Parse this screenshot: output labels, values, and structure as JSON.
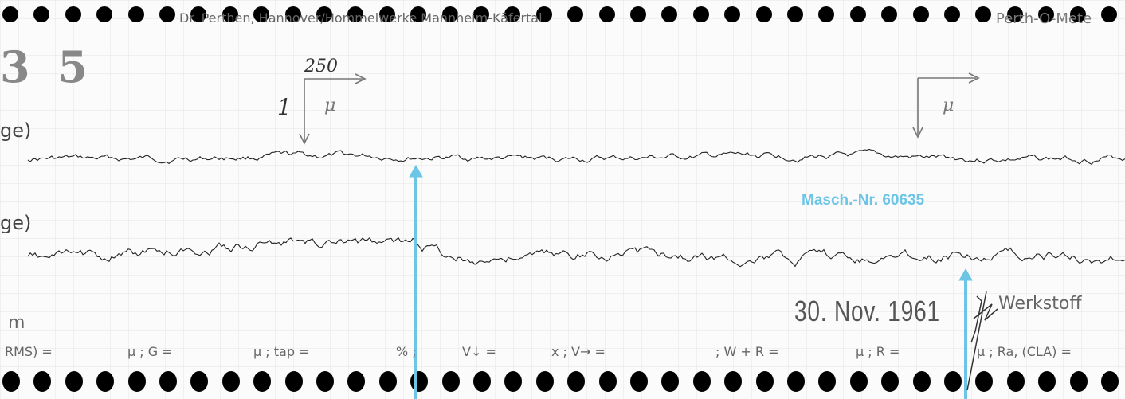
{
  "header": {
    "manufacturer": "Dr. Perthen, Hannover/Hommelwerke Mannheim-Käfertal",
    "product": "Perth-O-Mete",
    "number": "3 5"
  },
  "scales": {
    "horizontal_magnification": "250",
    "vertical_magnification": "1",
    "unit_left": "μ",
    "unit_right": "μ"
  },
  "rows": {
    "row1": "ge)",
    "row2": "ge)",
    "row3": "m"
  },
  "stamps": {
    "machine_number": "Masch.-Nr. 60635",
    "date": "30. Nov. 1961",
    "material": "Werkstoff"
  },
  "parameters": [
    "RMS) =",
    "μ ; G =",
    "μ ; tap =",
    "% ;",
    "V↓ =",
    "x ; V→ =",
    "; W + R =",
    "μ ; R =",
    "μ ; Ra, (CLA) ="
  ],
  "colors": {
    "marker_blue": "#6dc5e6",
    "trace": "#222222"
  }
}
